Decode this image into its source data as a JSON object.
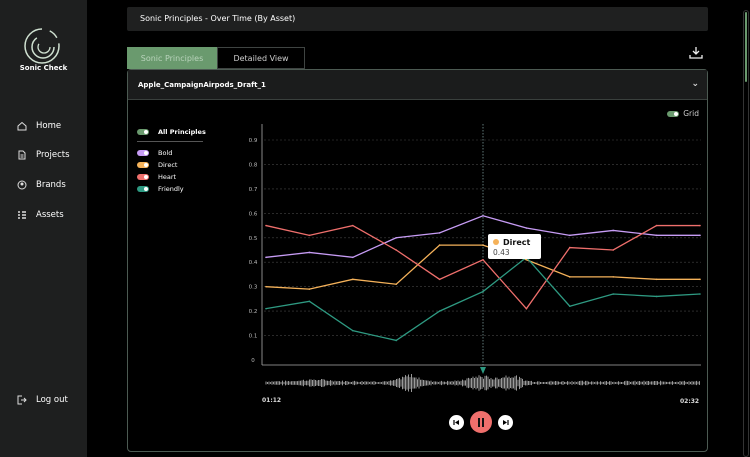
{
  "sidebar": {
    "brand": "Sonic Check",
    "items": [
      {
        "label": "Home",
        "icon": "home-icon"
      },
      {
        "label": "Projects",
        "icon": "document-icon"
      },
      {
        "label": "Brands",
        "icon": "user-circle-icon"
      },
      {
        "label": "Assets",
        "icon": "list-icon"
      }
    ],
    "logout": "Log out"
  },
  "header": {
    "title": "Sonic Principles - Over Time (By Asset)"
  },
  "tabs": [
    {
      "label": "Sonic Principles",
      "active": true
    },
    {
      "label": "Detailed View",
      "active": false
    }
  ],
  "asset": {
    "name": "Apple_CampaignAirpods_Draft_1"
  },
  "grid_toggle": {
    "label": "Grid",
    "on": true
  },
  "legend": {
    "all": "All Principles"
  },
  "tooltip": {
    "series": "Direct",
    "value": "0.43"
  },
  "player": {
    "start": "01:12",
    "end": "02:32",
    "playing": true,
    "playhead_fraction": 0.5
  },
  "colors": {
    "accent": "#6a9a6e",
    "bold": "#c79cf5",
    "direct": "#f5b25a",
    "heart": "#ef6f6c",
    "friendly": "#2e9a82",
    "pause": "#ef6f6c"
  },
  "chart_data": {
    "type": "line",
    "ylim": [
      0,
      0.9
    ],
    "yticks": [
      "0",
      "0.1",
      "0.2",
      "0.3",
      "0.4",
      "0.5",
      "0.6",
      "0.7",
      "0.8",
      "0.9"
    ],
    "x": [
      1,
      2,
      3,
      4,
      5,
      6,
      7,
      8,
      9,
      10,
      11
    ],
    "grid": true,
    "legend_position": "left",
    "series": [
      {
        "name": "Bold",
        "color": "#c79cf5",
        "values": [
          0.42,
          0.44,
          0.42,
          0.5,
          0.52,
          0.59,
          0.54,
          0.51,
          0.53,
          0.51,
          0.51
        ]
      },
      {
        "name": "Direct",
        "color": "#f5b25a",
        "values": [
          0.3,
          0.29,
          0.33,
          0.31,
          0.47,
          0.47,
          0.41,
          0.34,
          0.34,
          0.33,
          0.33
        ]
      },
      {
        "name": "Heart",
        "color": "#ef6f6c",
        "values": [
          0.55,
          0.51,
          0.55,
          0.45,
          0.33,
          0.41,
          0.21,
          0.46,
          0.45,
          0.55,
          0.55
        ]
      },
      {
        "name": "Friendly",
        "color": "#2e9a82",
        "values": [
          0.21,
          0.24,
          0.12,
          0.08,
          0.2,
          0.28,
          0.42,
          0.22,
          0.27,
          0.26,
          0.27
        ]
      }
    ]
  }
}
